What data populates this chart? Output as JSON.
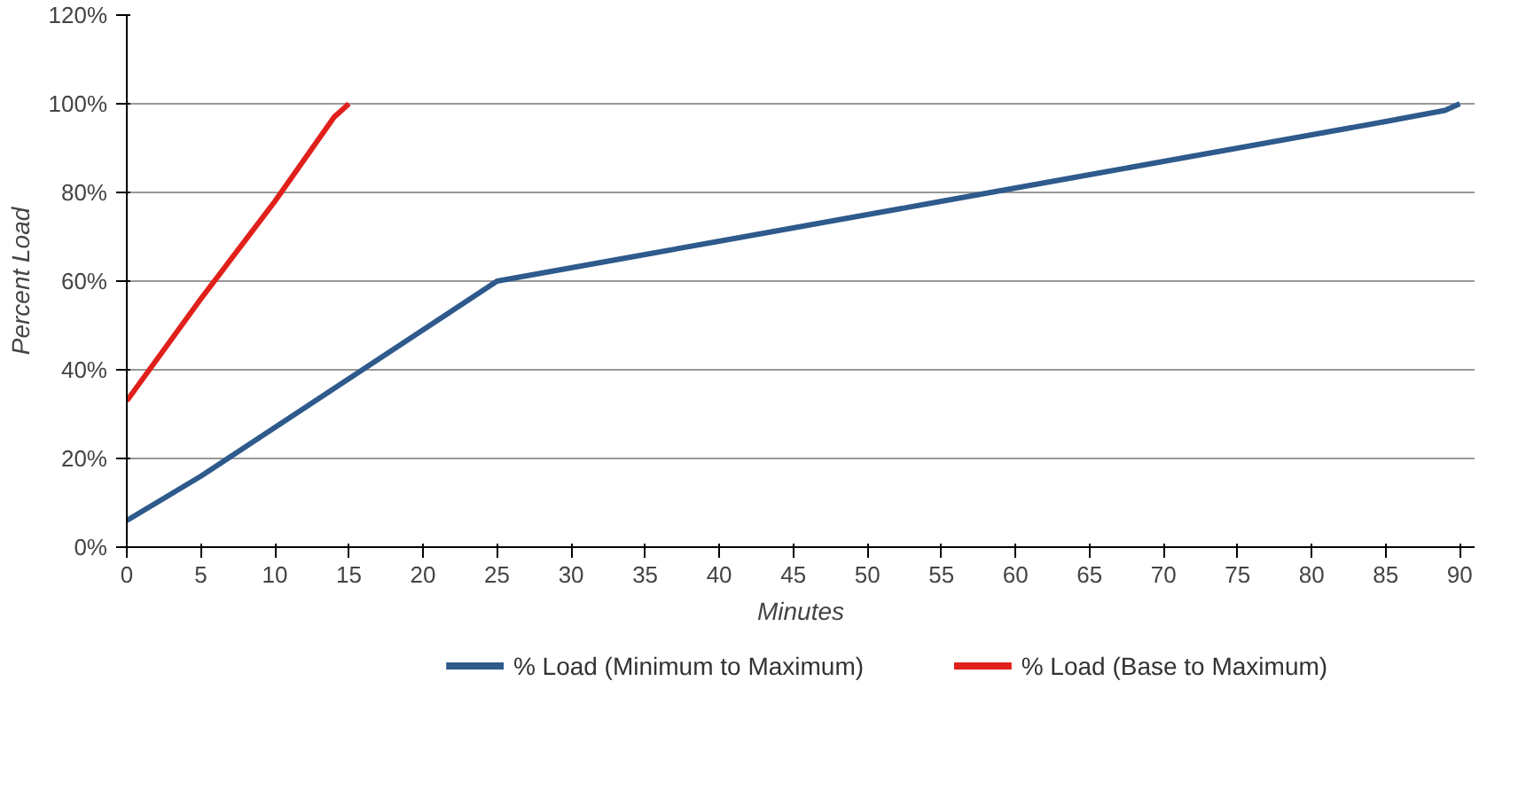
{
  "chart_data": {
    "type": "line",
    "xlabel": "Minutes",
    "ylabel": "Percent Load",
    "xlim": [
      0,
      91
    ],
    "ylim": [
      0,
      120
    ],
    "xticks": [
      0,
      5,
      10,
      15,
      20,
      25,
      30,
      35,
      40,
      45,
      50,
      55,
      60,
      65,
      70,
      75,
      80,
      85,
      90
    ],
    "yticks": [
      {
        "value": 0,
        "label": "0%"
      },
      {
        "value": 20,
        "label": "20%"
      },
      {
        "value": 40,
        "label": "40%"
      },
      {
        "value": 60,
        "label": "60%"
      },
      {
        "value": 80,
        "label": "80%"
      },
      {
        "value": 100,
        "label": "100%"
      },
      {
        "value": 120,
        "label": "120%"
      }
    ],
    "grid": "y",
    "legend": "bottom",
    "marker": "none",
    "line_style": "solid",
    "series": [
      {
        "name": "% Load (Minimum to Maximum)",
        "color": "#2e5a8c",
        "x": [
          0,
          5,
          10,
          15,
          20,
          25,
          30,
          35,
          40,
          45,
          50,
          55,
          60,
          65,
          70,
          75,
          80,
          85,
          89,
          90
        ],
        "values": [
          6,
          16,
          27,
          38,
          49,
          60,
          63,
          66,
          69,
          72,
          75,
          78,
          81,
          84,
          87,
          90,
          93,
          96,
          98.5,
          100
        ]
      },
      {
        "name": "% Load (Base to Maximum)",
        "color": "#e0201b",
        "x": [
          0,
          5,
          10,
          14,
          15
        ],
        "values": [
          33,
          56,
          78,
          97,
          100
        ]
      }
    ]
  }
}
